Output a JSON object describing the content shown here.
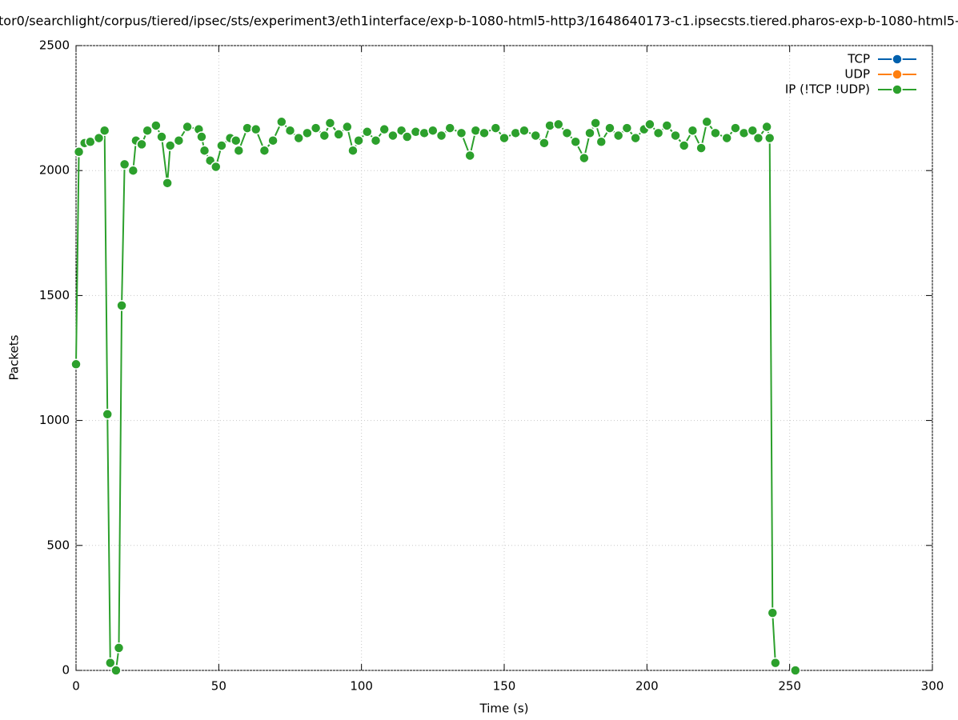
{
  "chart_data": {
    "type": "line",
    "title": "tor0/searchlight/corpus/tiered/ipsec/sts/experiment3/eth1interface/exp-b-1080-html5-http3/1648640173-c1.ipsecsts.tiered.pharos-exp-b-1080-html5-",
    "x_label": "Time (s)",
    "y_label": "Packets",
    "xlim": [
      0,
      300
    ],
    "xticks": [
      0,
      50,
      100,
      150,
      200,
      250,
      300
    ],
    "ylim": [
      0,
      2500
    ],
    "yticks": [
      0,
      500,
      1000,
      1500,
      2000,
      2500
    ],
    "grid": true,
    "legend": "top-right",
    "series": [
      {
        "name": "TCP",
        "color": "#0060ad",
        "x": [],
        "values": []
      },
      {
        "name": "UDP",
        "color": "#ff7f0e",
        "x": [],
        "values": []
      },
      {
        "name": "IP (!TCP  !UDP)",
        "color": "#2ca02c",
        "x": [
          0,
          1,
          3,
          5,
          8,
          10,
          11,
          12,
          14,
          15,
          16,
          17,
          20,
          21,
          23,
          25,
          28,
          30,
          32,
          33,
          36,
          39,
          43,
          44,
          45,
          47,
          49,
          51,
          54,
          56,
          57,
          60,
          63,
          66,
          69,
          72,
          75,
          78,
          81,
          84,
          87,
          89,
          92,
          95,
          97,
          99,
          102,
          105,
          108,
          111,
          114,
          116,
          119,
          122,
          125,
          128,
          131,
          135,
          138,
          140,
          143,
          147,
          150,
          154,
          157,
          161,
          164,
          166,
          169,
          172,
          175,
          178,
          180,
          182,
          184,
          187,
          190,
          193,
          196,
          199,
          201,
          204,
          207,
          210,
          213,
          216,
          219,
          221,
          224,
          228,
          231,
          234,
          237,
          239,
          242,
          243,
          244,
          245,
          248,
          252
        ],
        "values": [
          1225,
          2075,
          2110,
          2115,
          2130,
          2160,
          1025,
          30,
          0,
          90,
          1460,
          2025,
          2000,
          2120,
          2105,
          2160,
          2180,
          2135,
          1950,
          2100,
          2120,
          2175,
          2165,
          2135,
          2080,
          2040,
          2015,
          2100,
          2130,
          2120,
          2080,
          2170,
          2165,
          2080,
          2120,
          2195,
          2160,
          2130,
          2150,
          2170,
          2140,
          2190,
          2145,
          2175,
          2080,
          2120,
          2155,
          2120,
          2165,
          2140,
          2160,
          2135,
          2155,
          2150,
          2160,
          2140,
          2170,
          2150,
          2060,
          2160,
          2150,
          2170,
          2130,
          2150,
          2160,
          2140,
          2110,
          2180,
          2185,
          2150,
          2115,
          2050,
          2150,
          2190,
          2115,
          2170,
          2140,
          2170,
          2130,
          2165,
          2185,
          2150,
          2180,
          2140,
          2100,
          2160,
          2090,
          2195,
          2150,
          2130,
          2170,
          2150,
          2160,
          2130,
          2175,
          2130,
          230,
          30,
          null,
          0
        ]
      }
    ]
  }
}
